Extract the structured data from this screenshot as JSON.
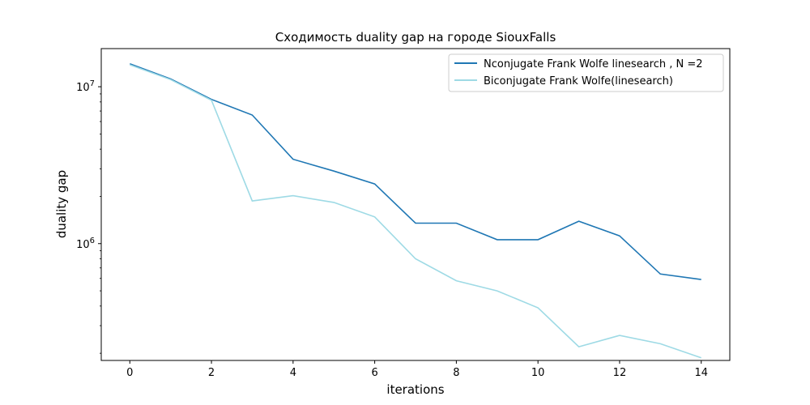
{
  "chart_data": {
    "type": "line",
    "title": "Сходимость duality gap на городе SiouxFalls",
    "xlabel": "iterations",
    "ylabel": "duality gap",
    "y_scale": "log",
    "xlim": [
      -0.7,
      14.7
    ],
    "ylim": [
      180000,
      17500000
    ],
    "x_ticks": [
      0,
      2,
      4,
      6,
      8,
      10,
      12,
      14
    ],
    "y_ticks": [
      {
        "value": 1000000,
        "base": "10",
        "exp": "6"
      },
      {
        "value": 10000000,
        "base": "10",
        "exp": "7"
      }
    ],
    "legend_position": "upper right",
    "grid": false,
    "x": [
      0,
      1,
      2,
      3,
      4,
      5,
      6,
      7,
      8,
      9,
      10,
      11,
      12,
      13,
      14
    ],
    "series": [
      {
        "name": "Nconjugate Frank Wolfe linesearch , N =2",
        "color": "#1f77b4",
        "values": [
          14000000,
          11200000,
          8300000,
          6600000,
          3450000,
          2900000,
          2400000,
          1350000,
          1350000,
          1060000,
          1060000,
          1390000,
          1120000,
          640000,
          590000
        ]
      },
      {
        "name": "Biconjugate Frank Wolfe(linesearch)",
        "color": "#9edae5",
        "values": [
          13800000,
          11100000,
          8200000,
          1870000,
          2020000,
          1830000,
          1480000,
          800000,
          580000,
          500000,
          390000,
          220000,
          260000,
          230000,
          187000
        ]
      }
    ]
  }
}
